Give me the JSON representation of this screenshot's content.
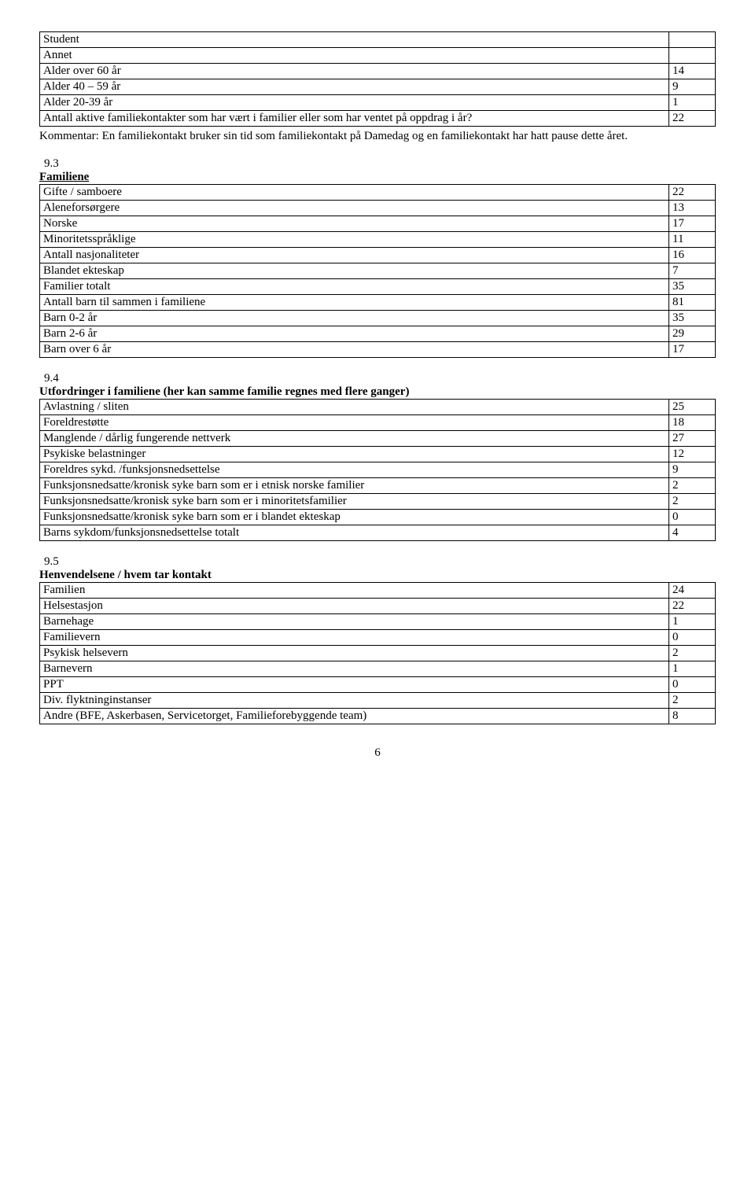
{
  "table1": {
    "rows": [
      {
        "label": "Student",
        "val": ""
      },
      {
        "label": "Annet",
        "val": ""
      },
      {
        "label": "Alder over 60 år",
        "val": "14"
      },
      {
        "label": "Alder 40 – 59 år",
        "val": "9"
      },
      {
        "label": "Alder 20-39 år",
        "val": "1"
      },
      {
        "label": "Antall aktive familiekontakter som har vært i familier eller som har ventet på oppdrag i år?",
        "val": "22"
      }
    ]
  },
  "note1": "Kommentar: En familiekontakt bruker sin tid som familiekontakt på Damedag og en familiekontakt har hatt pause dette året.",
  "s93": {
    "num": "9.3",
    "title": "Familiene",
    "rows": [
      {
        "label": "Gifte / samboere",
        "val": "22"
      },
      {
        "label": "Aleneforsørgere",
        "val": "13"
      },
      {
        "label": "Norske",
        "val": "17"
      },
      {
        "label": "Minoritetsspråklige",
        "val": "11"
      },
      {
        "label": "Antall nasjonaliteter",
        "val": "16"
      },
      {
        "label": "Blandet ekteskap",
        "val": "7"
      },
      {
        "label": "Familier totalt",
        "val": "35"
      },
      {
        "label": "Antall barn til sammen i familiene",
        "val": "81"
      },
      {
        "label": "Barn 0-2 år",
        "val": "35"
      },
      {
        "label": "Barn 2-6 år",
        "val": "29"
      },
      {
        "label": "Barn over 6 år",
        "val": "17"
      }
    ]
  },
  "s94": {
    "num": "9.4",
    "title": "Utfordringer i familiene (her kan samme familie regnes med flere ganger)",
    "rows": [
      {
        "label": "Avlastning / sliten",
        "val": "25"
      },
      {
        "label": "Foreldrestøtte",
        "val": "18"
      },
      {
        "label": "Manglende / dårlig fungerende nettverk",
        "val": "27"
      },
      {
        "label": "Psykiske belastninger",
        "val": "12"
      },
      {
        "label": "Foreldres sykd. /funksjonsnedsettelse",
        "val": "9"
      },
      {
        "label": "Funksjonsnedsatte/kronisk syke barn som er i etnisk norske familier",
        "val": "2"
      },
      {
        "label": "Funksjonsnedsatte/kronisk syke barn som er i minoritetsfamilier",
        "val": "2"
      },
      {
        "label": "Funksjonsnedsatte/kronisk syke barn som er i blandet ekteskap",
        "val": "0"
      },
      {
        "label": "Barns sykdom/funksjonsnedsettelse totalt",
        "val": "4"
      }
    ]
  },
  "s95": {
    "num": "9.5",
    "title": "Henvendelsene / hvem tar kontakt",
    "rows": [
      {
        "label": "Familien",
        "val": "24"
      },
      {
        "label": "Helsestasjon",
        "val": "22"
      },
      {
        "label": "Barnehage",
        "val": "1"
      },
      {
        "label": "Familievern",
        "val": "0"
      },
      {
        "label": "Psykisk helsevern",
        "val": "2"
      },
      {
        "label": "Barnevern",
        "val": "1"
      },
      {
        "label": "PPT",
        "val": "0"
      },
      {
        "label": "Div. flyktninginstanser",
        "val": "2"
      },
      {
        "label": "Andre (BFE, Askerbasen, Servicetorget, Familieforebyggende team)",
        "val": "8"
      }
    ]
  },
  "pagenum": "6"
}
